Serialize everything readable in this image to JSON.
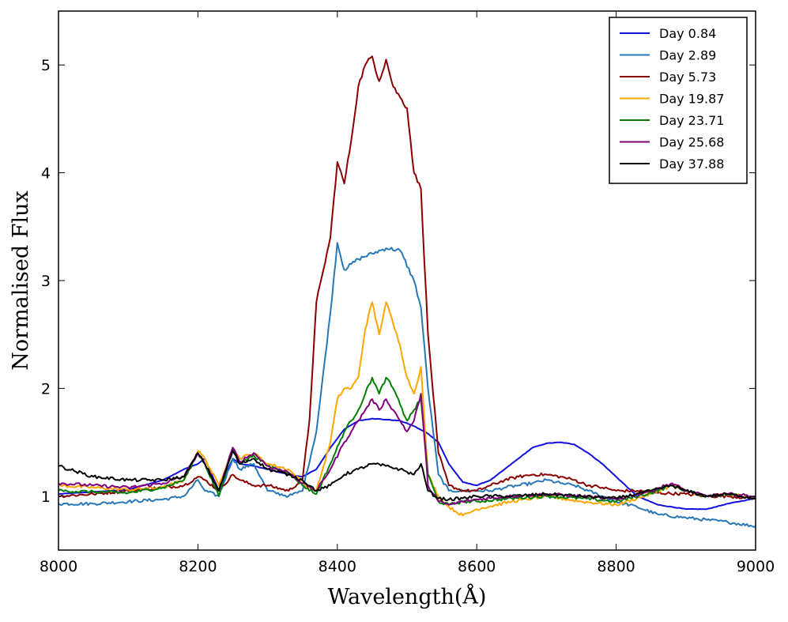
{
  "chart_data": {
    "type": "line",
    "title": "",
    "xlabel": "Wavelength(Å)",
    "ylabel": "Normalised Flux",
    "xlim": [
      8000,
      9000
    ],
    "ylim": [
      0.5,
      5.5
    ],
    "xticks": [
      8000,
      8200,
      8400,
      8600,
      8800,
      9000
    ],
    "yticks": [
      1,
      2,
      3,
      4,
      5
    ],
    "legend_position": "top-right",
    "series": [
      {
        "name": "Day 0.84",
        "color": "#1010e0",
        "x": [
          8000,
          8050,
          8100,
          8150,
          8180,
          8200,
          8210,
          8230,
          8250,
          8260,
          8280,
          8300,
          8330,
          8350,
          8370,
          8390,
          8410,
          8430,
          8450,
          8470,
          8490,
          8510,
          8530,
          8545,
          8560,
          8580,
          8600,
          8620,
          8640,
          8660,
          8680,
          8700,
          8720,
          8740,
          8760,
          8780,
          8800,
          8830,
          8860,
          8900,
          8930,
          8960,
          9000
        ],
        "y": [
          1.02,
          1.04,
          1.06,
          1.15,
          1.25,
          1.3,
          1.35,
          1.05,
          1.35,
          1.3,
          1.28,
          1.25,
          1.2,
          1.18,
          1.25,
          1.45,
          1.62,
          1.7,
          1.72,
          1.71,
          1.7,
          1.65,
          1.58,
          1.5,
          1.3,
          1.13,
          1.1,
          1.15,
          1.25,
          1.35,
          1.45,
          1.49,
          1.5,
          1.48,
          1.4,
          1.3,
          1.18,
          1.0,
          0.92,
          0.88,
          0.88,
          0.93,
          0.98
        ]
      },
      {
        "name": "Day 2.89",
        "color": "#2878b8",
        "x": [
          8000,
          8050,
          8100,
          8150,
          8180,
          8200,
          8210,
          8230,
          8250,
          8260,
          8280,
          8300,
          8330,
          8350,
          8370,
          8390,
          8400,
          8410,
          8430,
          8450,
          8470,
          8490,
          8510,
          8520,
          8530,
          8545,
          8560,
          8580,
          8600,
          8620,
          8640,
          8660,
          8680,
          8700,
          8720,
          8740,
          8760,
          8780,
          8800,
          8830,
          8860,
          8900,
          8930,
          8960,
          9000
        ],
        "y": [
          0.93,
          0.93,
          0.95,
          0.97,
          1.0,
          1.15,
          1.05,
          1.0,
          1.35,
          1.25,
          1.3,
          1.05,
          1.0,
          1.05,
          1.6,
          2.7,
          3.35,
          3.1,
          3.2,
          3.25,
          3.3,
          3.28,
          3.0,
          2.75,
          2.0,
          1.2,
          1.05,
          1.05,
          1.05,
          1.05,
          1.08,
          1.1,
          1.12,
          1.15,
          1.12,
          1.1,
          1.05,
          1.0,
          0.95,
          0.9,
          0.83,
          0.8,
          0.78,
          0.76,
          0.72
        ]
      },
      {
        "name": "Day 5.73",
        "color": "#8b0000",
        "x": [
          8000,
          8050,
          8100,
          8150,
          8180,
          8200,
          8210,
          8230,
          8250,
          8260,
          8280,
          8300,
          8330,
          8350,
          8360,
          8370,
          8380,
          8390,
          8400,
          8410,
          8420,
          8430,
          8440,
          8450,
          8460,
          8470,
          8480,
          8490,
          8500,
          8510,
          8520,
          8530,
          8545,
          8560,
          8580,
          8600,
          8620,
          8640,
          8660,
          8680,
          8700,
          8720,
          8740,
          8760,
          8780,
          8800,
          8830,
          8860,
          8900,
          8930,
          8960,
          9000
        ],
        "y": [
          1.0,
          1.02,
          1.05,
          1.08,
          1.1,
          1.18,
          1.15,
          1.05,
          1.2,
          1.15,
          1.1,
          1.1,
          1.05,
          1.15,
          1.7,
          2.8,
          3.1,
          3.4,
          4.1,
          3.9,
          4.3,
          4.8,
          5.0,
          5.08,
          4.85,
          5.05,
          4.8,
          4.7,
          4.6,
          4.0,
          3.85,
          2.5,
          1.4,
          1.1,
          1.05,
          1.05,
          1.1,
          1.15,
          1.18,
          1.2,
          1.2,
          1.18,
          1.15,
          1.1,
          1.08,
          1.05,
          1.05,
          1.03,
          1.02,
          1.0,
          1.0,
          0.98
        ]
      },
      {
        "name": "Day 19.87",
        "color": "#ffa500",
        "x": [
          8000,
          8050,
          8100,
          8150,
          8180,
          8200,
          8210,
          8230,
          8250,
          8260,
          8280,
          8300,
          8330,
          8350,
          8370,
          8390,
          8400,
          8410,
          8420,
          8430,
          8440,
          8450,
          8460,
          8470,
          8480,
          8490,
          8500,
          8510,
          8520,
          8530,
          8545,
          8560,
          8580,
          8600,
          8650,
          8700,
          8750,
          8800,
          8850,
          8880,
          8900,
          8930,
          8960,
          9000
        ],
        "y": [
          1.1,
          1.08,
          1.06,
          1.08,
          1.15,
          1.42,
          1.35,
          1.1,
          1.45,
          1.35,
          1.4,
          1.3,
          1.25,
          1.12,
          1.05,
          1.5,
          1.9,
          2.0,
          2.0,
          2.1,
          2.55,
          2.8,
          2.5,
          2.8,
          2.6,
          2.4,
          2.1,
          1.95,
          2.2,
          1.2,
          1.0,
          0.9,
          0.82,
          0.88,
          0.95,
          1.0,
          0.95,
          0.92,
          1.02,
          1.1,
          1.05,
          1.0,
          1.02,
          0.98
        ]
      },
      {
        "name": "Day 23.71",
        "color": "#008000",
        "x": [
          8000,
          8050,
          8100,
          8150,
          8180,
          8200,
          8210,
          8230,
          8250,
          8260,
          8280,
          8300,
          8330,
          8350,
          8370,
          8390,
          8410,
          8420,
          8430,
          8440,
          8450,
          8460,
          8470,
          8480,
          8490,
          8500,
          8510,
          8520,
          8530,
          8545,
          8560,
          8580,
          8600,
          8650,
          8700,
          8750,
          8800,
          8850,
          8880,
          8900,
          8930,
          8960,
          9000
        ],
        "y": [
          1.05,
          1.04,
          1.03,
          1.08,
          1.15,
          1.4,
          1.3,
          1.0,
          1.45,
          1.3,
          1.38,
          1.28,
          1.22,
          1.1,
          1.02,
          1.3,
          1.6,
          1.7,
          1.8,
          1.95,
          2.1,
          1.95,
          2.1,
          2.0,
          1.85,
          1.7,
          1.8,
          1.9,
          1.2,
          0.95,
          0.92,
          0.95,
          0.95,
          0.98,
          1.0,
          0.98,
          0.95,
          1.03,
          1.1,
          1.05,
          1.0,
          1.02,
          0.98
        ]
      },
      {
        "name": "Day 25.68",
        "color": "#800080",
        "x": [
          8000,
          8050,
          8100,
          8150,
          8180,
          8200,
          8210,
          8230,
          8250,
          8260,
          8280,
          8300,
          8330,
          8350,
          8370,
          8390,
          8410,
          8420,
          8430,
          8440,
          8450,
          8460,
          8470,
          8480,
          8490,
          8500,
          8510,
          8520,
          8530,
          8545,
          8560,
          8580,
          8600,
          8650,
          8700,
          8750,
          8800,
          8850,
          8880,
          8900,
          8930,
          8960,
          9000
        ],
        "y": [
          1.12,
          1.1,
          1.08,
          1.12,
          1.18,
          1.4,
          1.3,
          1.05,
          1.45,
          1.32,
          1.4,
          1.28,
          1.22,
          1.12,
          1.05,
          1.25,
          1.5,
          1.6,
          1.7,
          1.8,
          1.9,
          1.8,
          1.9,
          1.8,
          1.7,
          1.6,
          1.7,
          1.95,
          1.1,
          0.95,
          0.92,
          0.95,
          0.97,
          1.0,
          1.02,
          1.0,
          0.97,
          1.05,
          1.12,
          1.05,
          1.0,
          1.02,
          1.0
        ]
      },
      {
        "name": "Day 37.88",
        "color": "#000000",
        "x": [
          8000,
          8050,
          8100,
          8150,
          8180,
          8200,
          8210,
          8230,
          8250,
          8260,
          8280,
          8300,
          8330,
          8350,
          8370,
          8390,
          8410,
          8430,
          8450,
          8470,
          8490,
          8510,
          8520,
          8530,
          8545,
          8560,
          8580,
          8600,
          8650,
          8700,
          8750,
          8800,
          8850,
          8880,
          8900,
          8930,
          8960,
          9000
        ],
        "y": [
          1.28,
          1.18,
          1.15,
          1.15,
          1.18,
          1.4,
          1.3,
          1.05,
          1.42,
          1.3,
          1.35,
          1.25,
          1.2,
          1.15,
          1.05,
          1.1,
          1.2,
          1.25,
          1.3,
          1.28,
          1.25,
          1.2,
          1.3,
          1.05,
          0.98,
          0.97,
          0.98,
          1.0,
          1.0,
          1.02,
          1.0,
          0.98,
          1.05,
          1.1,
          1.05,
          1.0,
          1.02,
          0.98
        ]
      }
    ]
  }
}
